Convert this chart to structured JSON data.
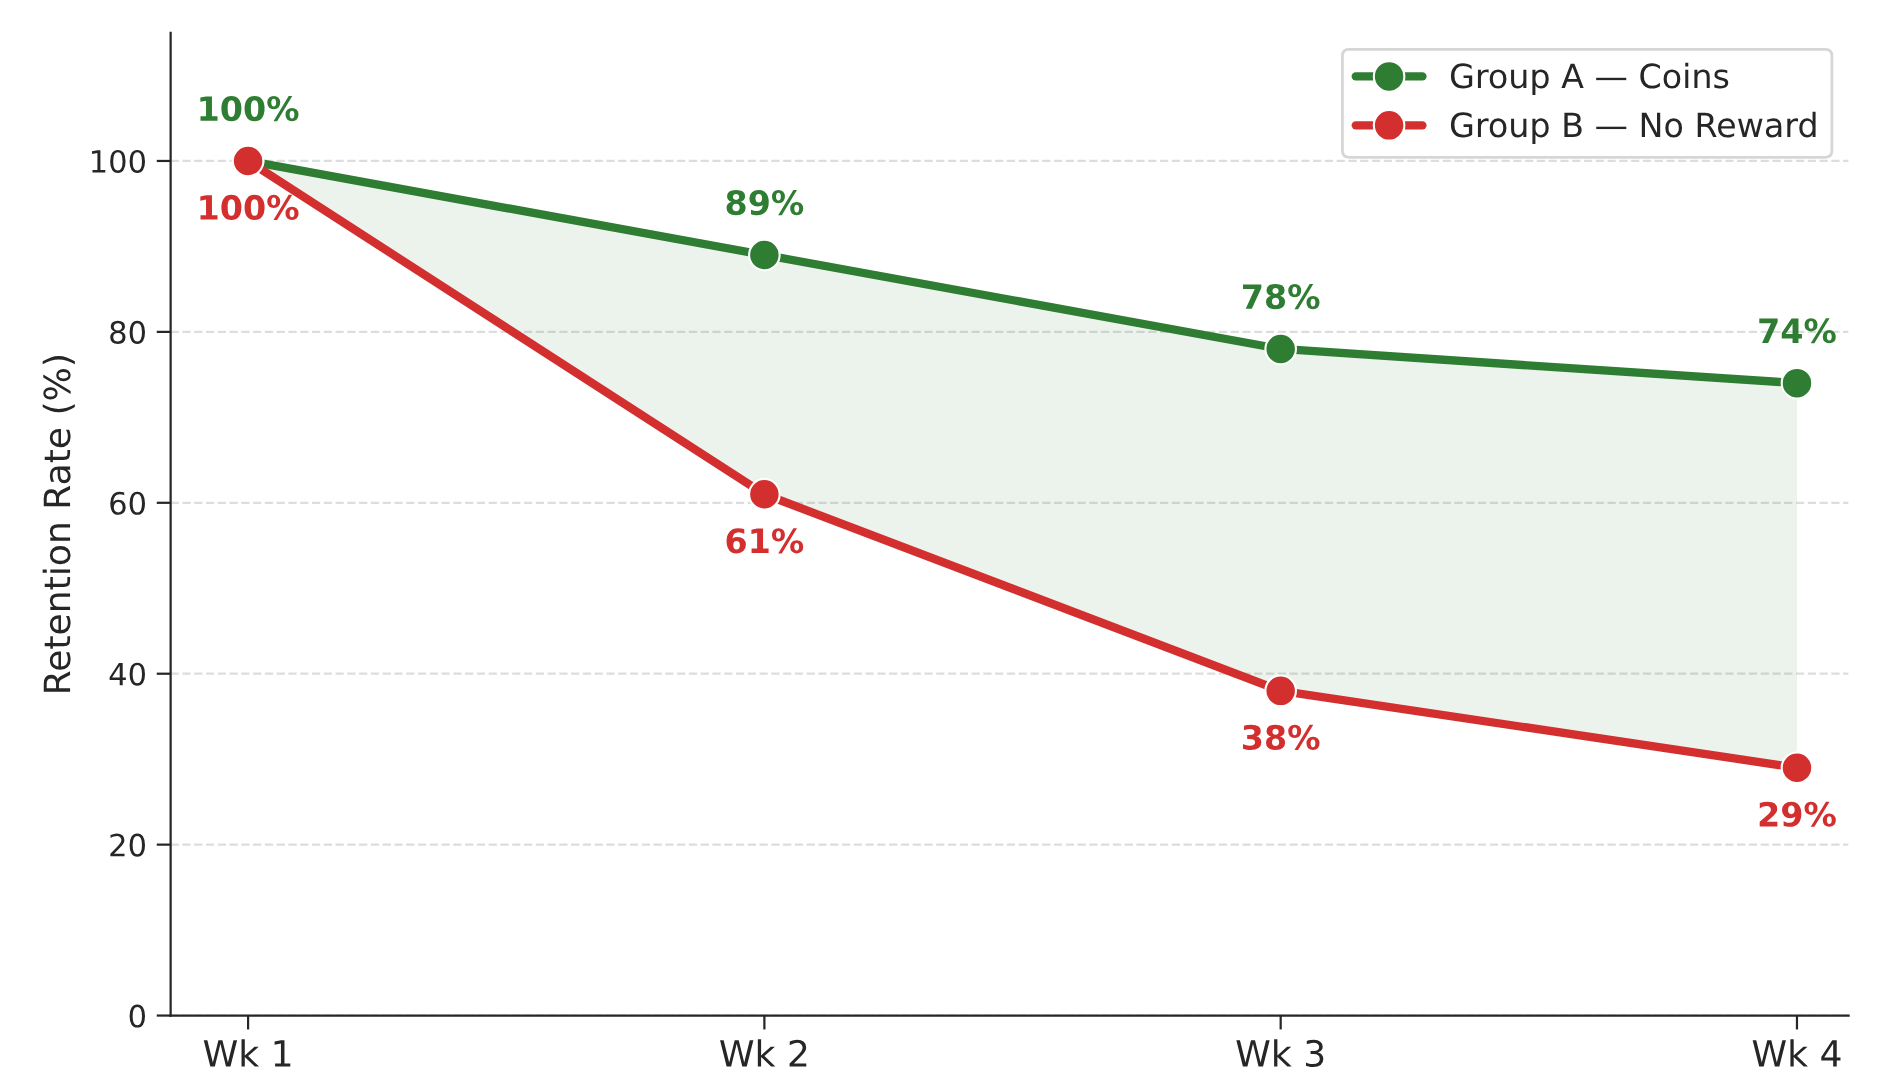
{
  "chart_data": {
    "type": "line",
    "ylabel": "Retention Rate (%)",
    "categories": [
      "Wk 1",
      "Wk 2",
      "Wk 3",
      "Wk 4"
    ],
    "series": [
      {
        "name": "Group A — Coins",
        "color": "#2e7d32",
        "values": [
          100,
          89,
          78,
          74
        ],
        "value_labels": [
          "100%",
          "89%",
          "78%",
          "74%"
        ],
        "lower": [
          100,
          61,
          38,
          29
        ],
        "upper": [
          100,
          89,
          78,
          74
        ]
      },
      {
        "name": "Group B — No Reward",
        "color": "#d32f2f",
        "values": [
          100,
          61,
          38,
          29
        ],
        "value_labels": [
          "100%",
          "61%",
          "38%",
          "29%"
        ]
      }
    ],
    "ylim": [
      0,
      115
    ],
    "yticks": [
      0,
      20,
      40,
      60,
      80,
      100
    ],
    "grid": "y",
    "legend": "top right",
    "marker": "circle",
    "line_style": "solid"
  }
}
